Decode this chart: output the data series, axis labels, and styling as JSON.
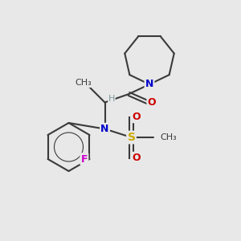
{
  "background_color": "#e8e8e8",
  "bond_color": "#3a3a3a",
  "bond_width": 1.5,
  "atom_colors": {
    "N": "#0000cc",
    "O": "#cc0000",
    "S": "#ccaa00",
    "F": "#cc00cc",
    "C": "#3a3a3a",
    "H": "#7a9a9a"
  },
  "font_size": 9,
  "figsize": [
    3.0,
    3.0
  ],
  "dpi": 100
}
